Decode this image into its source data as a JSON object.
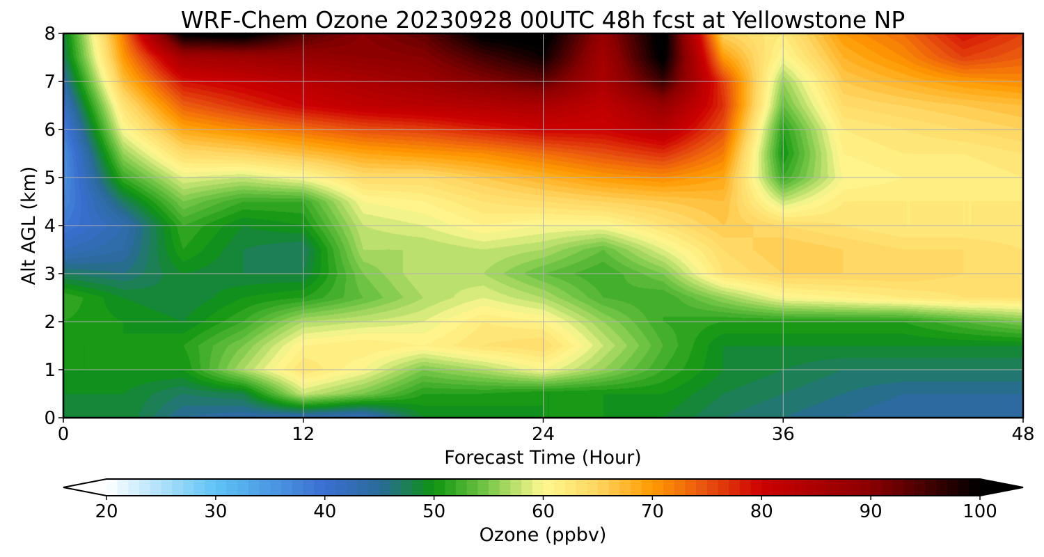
{
  "chart_data": {
    "type": "heatmap",
    "title": "WRF-Chem Ozone  20230928 00UTC 48h fcst at Yellowstone NP",
    "xlabel": "Forecast Time (Hour)",
    "ylabel": "Alt AGL (km)",
    "xlim": [
      0,
      48
    ],
    "ylim": [
      0,
      8
    ],
    "x_ticks": [
      "0",
      "12",
      "24",
      "36",
      "48"
    ],
    "y_ticks": [
      "0",
      "1",
      "2",
      "3",
      "4",
      "5",
      "6",
      "7",
      "8"
    ],
    "grid": true,
    "x_hours": [
      0,
      3,
      6,
      9,
      12,
      15,
      18,
      21,
      24,
      27,
      30,
      33,
      36,
      39,
      42,
      45,
      48
    ],
    "alt_km": [
      0,
      0.5,
      1,
      1.5,
      2,
      2.5,
      3,
      3.5,
      4,
      4.5,
      5,
      5.5,
      6,
      6.5,
      7,
      7.5,
      8
    ],
    "ozone_ppbv": [
      [
        48,
        49,
        45,
        44,
        43,
        42,
        49,
        49,
        50,
        50,
        49,
        47,
        46,
        45,
        44,
        44,
        44
      ],
      [
        49,
        49,
        47,
        48,
        58,
        55,
        51,
        51,
        50,
        50,
        50,
        48,
        47,
        46,
        45,
        45,
        45
      ],
      [
        50,
        50,
        50,
        57,
        63,
        60,
        55,
        57,
        60,
        56,
        52,
        49,
        48,
        47,
        47,
        47,
        47
      ],
      [
        50,
        50,
        51,
        55,
        61,
        62,
        61,
        63,
        64,
        58,
        53,
        49,
        49,
        49,
        49,
        49,
        49
      ],
      [
        51,
        50,
        49,
        52,
        57,
        58,
        59,
        62,
        61,
        56,
        52,
        51,
        51,
        51,
        51,
        53,
        55
      ],
      [
        52,
        49,
        48,
        50,
        51,
        54,
        57,
        59,
        57,
        53,
        52,
        56,
        60,
        61,
        62,
        63,
        63
      ],
      [
        47,
        46,
        49,
        48,
        48,
        55,
        58,
        57,
        54,
        52,
        55,
        63,
        65,
        65,
        65,
        64,
        63
      ],
      [
        42,
        44,
        51,
        48,
        47,
        57,
        57,
        58,
        57,
        54,
        59,
        64,
        66,
        65,
        64,
        64,
        63
      ],
      [
        39,
        43,
        52,
        49,
        50,
        58,
        59,
        61,
        60,
        60,
        63,
        66,
        64,
        63,
        62,
        62,
        62
      ],
      [
        37,
        47,
        55,
        52,
        52,
        60,
        61,
        63,
        64,
        65,
        66,
        67,
        58,
        62,
        62,
        62,
        62
      ],
      [
        36,
        52,
        59,
        58,
        60,
        64,
        64,
        66,
        68,
        70,
        71,
        69,
        52,
        60,
        61,
        61,
        62
      ],
      [
        36,
        56,
        64,
        65,
        67,
        69,
        70,
        71,
        73,
        75,
        77,
        72,
        50,
        61,
        62,
        62,
        63
      ],
      [
        38,
        60,
        69,
        71,
        73,
        75,
        76,
        78,
        80,
        80,
        83,
        75,
        51,
        62,
        63,
        64,
        65
      ],
      [
        41,
        63,
        74,
        77,
        80,
        82,
        83,
        84,
        85,
        82,
        88,
        77,
        54,
        64,
        65,
        66,
        67
      ],
      [
        44,
        67,
        79,
        81,
        83,
        85,
        87,
        90,
        93,
        85,
        96,
        76,
        56,
        66,
        68,
        70,
        71
      ],
      [
        47,
        70,
        86,
        87,
        88,
        89,
        90,
        95,
        99,
        86,
        101,
        70,
        60,
        68,
        71,
        76,
        74
      ],
      [
        48,
        72,
        101,
        102,
        94,
        90,
        93,
        101,
        102,
        88,
        102,
        65,
        62,
        70,
        73,
        79,
        76
      ]
    ],
    "colorbar": {
      "label": "Ozone  (ppbv)",
      "min": 20,
      "max": 100,
      "step": 1,
      "extend": "both",
      "ticks": [
        "20",
        "30",
        "40",
        "50",
        "60",
        "70",
        "80",
        "90",
        "100"
      ],
      "color_stops": [
        [
          20,
          "#ffffff"
        ],
        [
          30,
          "#5fc3f5"
        ],
        [
          40,
          "#3a6fd0"
        ],
        [
          45,
          "#2a6a9a"
        ],
        [
          50,
          "#0e9410"
        ],
        [
          55,
          "#7ac84a"
        ],
        [
          60,
          "#fff891"
        ],
        [
          65,
          "#ffd560"
        ],
        [
          70,
          "#ff9a00"
        ],
        [
          75,
          "#e85010"
        ],
        [
          80,
          "#cc0000"
        ],
        [
          90,
          "#8a0000"
        ],
        [
          100,
          "#000000"
        ]
      ]
    }
  }
}
